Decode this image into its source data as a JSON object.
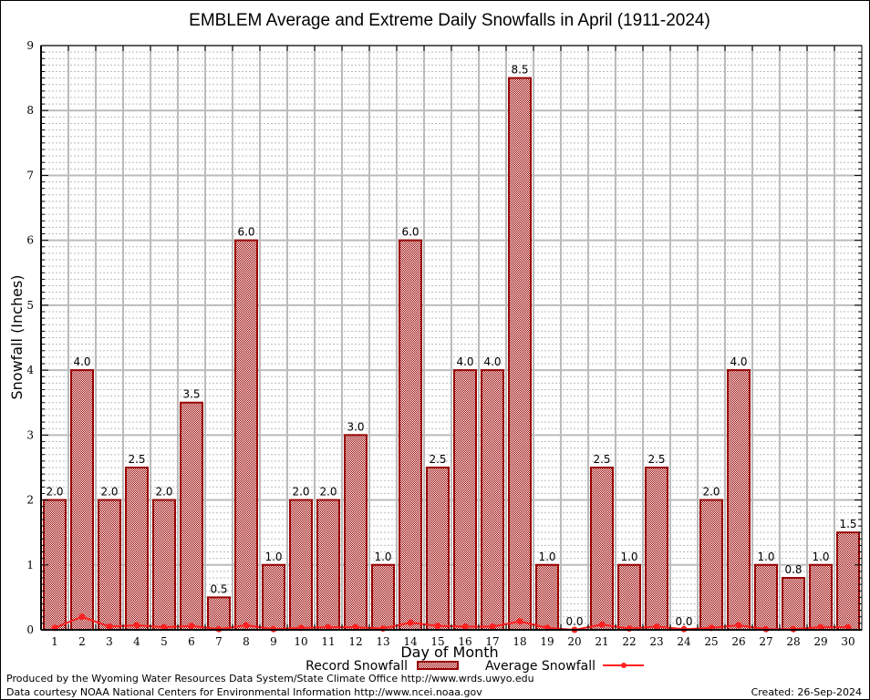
{
  "chart_data": {
    "type": "bar",
    "title": "EMBLEM Average and Extreme Daily Snowfalls in April (1911-2024)",
    "xlabel": "Day of Month",
    "ylabel": "Snowfall (Inches)",
    "ylim": [
      0,
      9
    ],
    "yticks": [
      0,
      1,
      2,
      3,
      4,
      5,
      6,
      7,
      8,
      9
    ],
    "grid": true,
    "categories": [
      "1",
      "2",
      "3",
      "4",
      "5",
      "6",
      "7",
      "8",
      "9",
      "10",
      "11",
      "12",
      "13",
      "14",
      "15",
      "16",
      "17",
      "18",
      "19",
      "20",
      "21",
      "22",
      "23",
      "24",
      "25",
      "26",
      "27",
      "28",
      "29",
      "30"
    ],
    "series": [
      {
        "name": "Record Snowfall",
        "type": "bar",
        "color": "#990000",
        "values": [
          2.0,
          4.0,
          2.0,
          2.5,
          2.0,
          3.5,
          0.5,
          6.0,
          1.0,
          2.0,
          2.0,
          3.0,
          1.0,
          6.0,
          2.5,
          4.0,
          4.0,
          8.5,
          1.0,
          0.0,
          2.5,
          1.0,
          2.5,
          0.0,
          2.0,
          4.0,
          1.0,
          0.8,
          1.0,
          1.5
        ],
        "labels": [
          "2.0",
          "4.0",
          "2.0",
          "2.5",
          "2.0",
          "3.5",
          "0.5",
          "6.0",
          "1.0",
          "2.0",
          "2.0",
          "3.0",
          "1.0",
          "6.0",
          "2.5",
          "4.0",
          "4.0",
          "8.5",
          "1.0",
          "0.0",
          "2.5",
          "1.0",
          "2.5",
          "0.0",
          "2.0",
          "4.0",
          "1.0",
          "0.8",
          "1.0",
          "1.5"
        ]
      },
      {
        "name": "Average Snowfall",
        "type": "line",
        "color": "#ff2020",
        "values": [
          0.03,
          0.2,
          0.05,
          0.07,
          0.04,
          0.06,
          0.01,
          0.07,
          0.01,
          0.03,
          0.04,
          0.04,
          0.02,
          0.11,
          0.06,
          0.05,
          0.05,
          0.13,
          0.03,
          0.0,
          0.08,
          0.02,
          0.05,
          0.01,
          0.03,
          0.07,
          0.01,
          0.01,
          0.04,
          0.04
        ]
      }
    ],
    "legend": {
      "position": "bottom-center",
      "items": [
        "Record Snowfall",
        "Average Snowfall"
      ]
    }
  },
  "footer": {
    "credit_line_1": "Produced by the Wyoming Water Resources Data System/State Climate Office http://www.wrds.uwyo.edu",
    "credit_line_2": "Data courtesy NOAA National Centers for Environmental Information http://www.ncei.noaa.gov",
    "created": "Created: 26-Sep-2024"
  }
}
